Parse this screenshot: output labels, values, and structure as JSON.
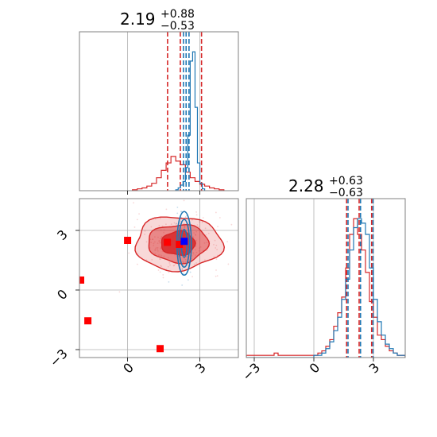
{
  "chart_data": [
    {
      "panel": "top-left marginal",
      "type": "histogram",
      "title": {
        "main": "2.19",
        "plus": "+0.88",
        "minus": "−0.53"
      },
      "xlim": [
        -2.0,
        4.6
      ],
      "grid": true,
      "show_xtick_labels": false,
      "series": [
        {
          "name": "",
          "color": "#d62728",
          "bin_edges": [
            0.2,
            0.4,
            0.6,
            0.8,
            1.0,
            1.2,
            1.4,
            1.6,
            1.8,
            2.0,
            2.2,
            2.4,
            2.6,
            2.8,
            3.0,
            3.2,
            3.4,
            3.6,
            3.8,
            4.0
          ],
          "counts": [
            1,
            2,
            3,
            5,
            8,
            14,
            22,
            30,
            37,
            32,
            28,
            20,
            14,
            10,
            7,
            5,
            3,
            2,
            1
          ],
          "quantile_lines": [
            1.66,
            2.19,
            3.07
          ]
        },
        {
          "name": "",
          "color": "#1f77b4",
          "bin_edges": [
            2.0,
            2.1,
            2.2,
            2.3,
            2.4,
            2.5,
            2.6,
            2.7,
            2.8,
            2.9,
            3.0,
            3.1,
            3.2
          ],
          "counts": [
            1,
            3,
            6,
            10,
            25,
            60,
            140,
            150,
            90,
            30,
            8,
            2
          ],
          "quantile_lines": [
            2.32,
            2.43,
            2.55
          ]
        }
      ]
    },
    {
      "panel": "bottom-left 2D",
      "type": "contour",
      "xlim": [
        -2.0,
        4.6
      ],
      "ylim": [
        -3.4,
        4.6
      ],
      "xticks": [
        "0",
        "3"
      ],
      "yticks": [
        "−3",
        "0",
        "3"
      ],
      "grid": true,
      "contours": [
        {
          "color": "#d62728",
          "center": [
            2.1,
            2.35
          ],
          "levels": [
            {
              "rx": 0.7,
              "ry": 0.6
            },
            {
              "rx": 1.25,
              "ry": 0.95
            },
            {
              "rx": 1.8,
              "ry": 1.35
            }
          ]
        },
        {
          "color": "#1f77b4",
          "center": [
            2.35,
            2.35
          ],
          "levels": [
            {
              "rx": 0.12,
              "ry": 0.7
            },
            {
              "rx": 0.22,
              "ry": 1.2
            },
            {
              "rx": 0.3,
              "ry": 1.6
            }
          ]
        }
      ],
      "markers": [
        {
          "color": "#ff0000",
          "points": [
            [
              0.0,
              2.5
            ],
            [
              1.65,
              2.4
            ],
            [
              2.15,
              2.3
            ],
            [
              -1.95,
              0.5
            ],
            [
              -1.65,
              -1.55
            ],
            [
              1.35,
              -2.95
            ]
          ]
        },
        {
          "color": "#0000ff",
          "points": [
            [
              2.35,
              2.45
            ]
          ]
        }
      ]
    },
    {
      "panel": "bottom-right marginal",
      "type": "histogram",
      "title": {
        "main": "2.28",
        "plus": "+0.63",
        "minus": "−0.63"
      },
      "xlim": [
        -3.4,
        4.6
      ],
      "xticks": [
        "−3",
        "0",
        "3"
      ],
      "grid": true,
      "series": [
        {
          "name": "",
          "color": "#d62728",
          "bin_edges": [
            -3.4,
            -3.2,
            -3.0,
            -2.8,
            -2.6,
            -2.4,
            -2.2,
            -2.0,
            -1.8,
            -1.6,
            -1.4,
            -1.2,
            -1.0,
            -0.8,
            -0.6,
            -0.4,
            -0.2,
            0.0,
            0.2,
            0.4,
            0.6,
            0.8,
            1.0,
            1.2,
            1.4,
            1.6,
            1.8,
            2.0,
            2.2,
            2.4,
            2.6,
            2.8,
            3.0,
            3.2,
            3.4,
            3.6,
            3.8,
            4.0,
            4.2,
            4.4,
            4.6
          ],
          "counts": [
            1,
            1,
            1,
            1,
            1,
            1,
            1,
            2,
            1,
            1,
            1,
            1,
            1,
            1,
            1,
            1,
            1,
            1,
            2,
            3,
            5,
            8,
            14,
            20,
            27,
            40,
            55,
            62,
            55,
            48,
            38,
            25,
            18,
            10,
            8,
            5,
            3,
            2,
            1,
            1
          ],
          "quantile_lines": [
            1.65,
            2.28,
            2.91
          ]
        },
        {
          "name": "",
          "color": "#1f77b4",
          "bin_edges": [
            -3.4,
            -3.2,
            -3.0,
            -2.8,
            -2.6,
            -2.4,
            -2.2,
            -2.0,
            -1.8,
            -1.6,
            -1.4,
            -1.2,
            -1.0,
            -0.8,
            -0.6,
            -0.4,
            -0.2,
            0.0,
            0.2,
            0.4,
            0.6,
            0.8,
            1.0,
            1.2,
            1.4,
            1.6,
            1.8,
            2.0,
            2.2,
            2.4,
            2.6,
            2.8,
            3.0,
            3.2,
            3.4,
            3.6,
            3.8,
            4.0,
            4.2,
            4.4,
            4.6
          ],
          "counts": [
            0,
            0,
            0,
            0,
            0,
            0,
            0,
            0,
            0,
            0,
            0,
            0,
            0,
            0,
            0,
            0,
            0,
            1,
            1,
            2,
            4,
            7,
            12,
            18,
            26,
            35,
            48,
            58,
            62,
            60,
            55,
            40,
            26,
            16,
            10,
            6,
            4,
            2,
            1,
            1
          ],
          "quantile_lines": [
            1.72,
            2.35,
            2.98
          ]
        }
      ]
    }
  ]
}
